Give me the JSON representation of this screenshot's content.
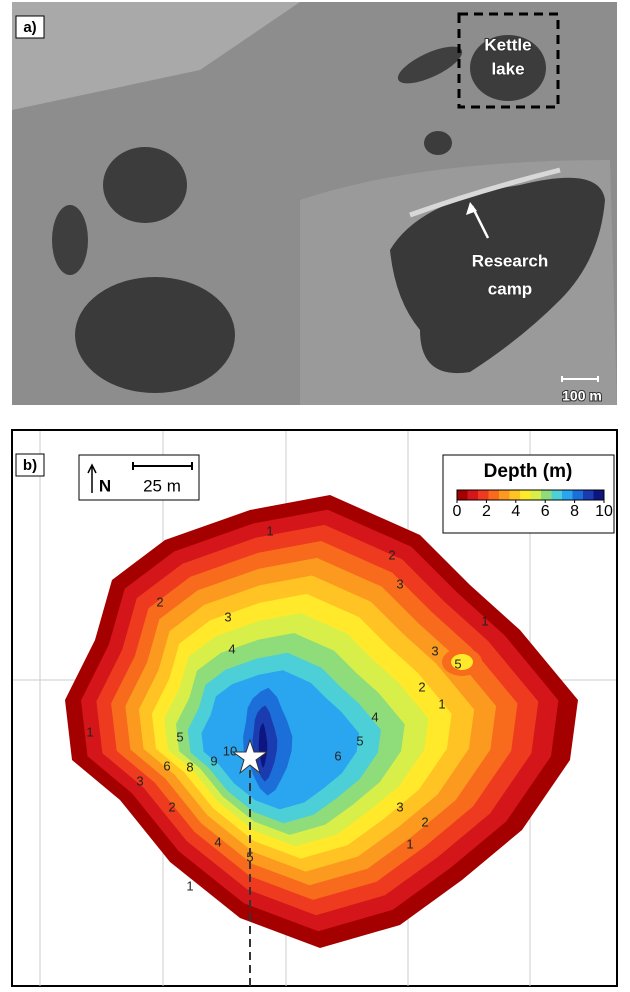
{
  "panel_a": {
    "label": "a)",
    "kettle_lake": [
      "Kettle",
      "lake"
    ],
    "research_camp": [
      "Research",
      "camp"
    ],
    "scale_bar": "100 m"
  },
  "panel_b": {
    "label": "b)",
    "north": "N",
    "scale_bar": "25 m",
    "colorbar": {
      "title": "Depth (m)",
      "lim": [
        0,
        10
      ],
      "ticks": [
        0,
        2,
        4,
        6,
        8,
        10
      ],
      "colors": [
        "#a50000",
        "#d4151a",
        "#ee3b1f",
        "#f86a1c",
        "#fb9a1f",
        "#ffc423",
        "#ffe92a",
        "#d8ef4a",
        "#8fdc7a",
        "#4ccfd6",
        "#2aa6f0",
        "#1c6fd8",
        "#1a3cb0",
        "#0c1580"
      ]
    },
    "contour_labels": [
      1,
      2,
      3,
      1,
      2,
      3,
      4,
      3,
      5,
      2,
      1,
      1,
      5,
      4,
      5,
      6,
      9,
      10,
      8,
      6,
      3,
      2,
      3,
      2,
      1,
      4,
      5,
      1
    ]
  }
}
